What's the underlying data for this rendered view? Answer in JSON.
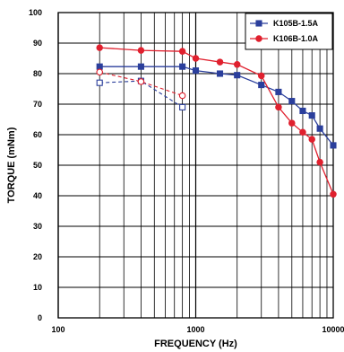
{
  "chart_data": {
    "type": "line",
    "xlabel": "FREQUENCY (Hz)",
    "ylabel": "TORQUE (mNm)",
    "x_scale": "log",
    "xlim": [
      100,
      10000
    ],
    "ylim": [
      0,
      100
    ],
    "x_ticks": [
      {
        "value": 100,
        "label": "100"
      },
      {
        "value": 1000,
        "label": "1000"
      },
      {
        "value": 10000,
        "label": "10000"
      }
    ],
    "y_ticks": [
      0,
      10,
      20,
      30,
      40,
      50,
      60,
      70,
      80,
      90,
      100
    ],
    "grid": true,
    "legend_position": "top-right",
    "series": [
      {
        "name": "K105B-1.5A",
        "color": "#2b3f9c",
        "marker": "square",
        "values": [
          [
            200,
            82.3
          ],
          [
            400,
            82.3
          ],
          [
            800,
            82.3
          ],
          [
            1000,
            81
          ],
          [
            1500,
            80
          ],
          [
            2000,
            79.5
          ],
          [
            3000,
            76.3
          ],
          [
            4000,
            74
          ],
          [
            5000,
            71
          ],
          [
            6000,
            67.8
          ],
          [
            7000,
            66.3
          ],
          [
            8000,
            62
          ],
          [
            10000,
            56.5
          ]
        ],
        "pullout_values": [
          [
            200,
            77
          ],
          [
            400,
            77.6
          ],
          [
            800,
            69
          ]
        ]
      },
      {
        "name": "K106B-1.0A",
        "color": "#e0202e",
        "marker": "circle",
        "values": [
          [
            200,
            88.5
          ],
          [
            400,
            87.6
          ],
          [
            800,
            87.3
          ],
          [
            1000,
            85
          ],
          [
            1500,
            83.8
          ],
          [
            2000,
            83
          ],
          [
            3000,
            79.3
          ],
          [
            4000,
            69
          ],
          [
            5000,
            63.8
          ],
          [
            6000,
            60.8
          ],
          [
            7000,
            58.5
          ],
          [
            8000,
            51
          ],
          [
            10000,
            40.5
          ]
        ],
        "pullout_values": [
          [
            200,
            80.5
          ],
          [
            400,
            77.4
          ],
          [
            800,
            72.8
          ]
        ]
      }
    ]
  }
}
